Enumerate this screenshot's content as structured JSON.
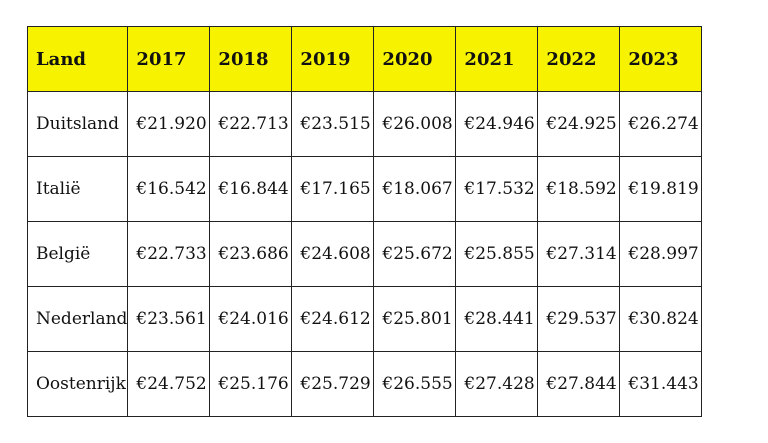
{
  "table": {
    "headers": [
      "Land",
      "2017",
      "2018",
      "2019",
      "2020",
      "2021",
      "2022",
      "2023"
    ],
    "rows": [
      {
        "country": "Duitsland",
        "values": [
          "€21.920",
          "€22.713",
          "€23.515",
          "€26.008",
          "€24.946",
          "€24.925",
          "€26.274"
        ]
      },
      {
        "country": "Italië",
        "values": [
          "€16.542",
          "€16.844",
          "€17.165",
          "€18.067",
          "€17.532",
          "€18.592",
          "€19.819"
        ]
      },
      {
        "country": "België",
        "values": [
          "€22.733",
          "€23.686",
          "€24.608",
          "€25.672",
          "€25.855",
          "€27.314",
          "€28.997"
        ]
      },
      {
        "country": "Nederland",
        "values": [
          "€23.561",
          "€24.016",
          "€24.612",
          "€25.801",
          "€28.441",
          "€29.537",
          "€30.824"
        ]
      },
      {
        "country": "Oostenrijk",
        "values": [
          "€24.752",
          "€25.176",
          "€25.729",
          "€26.555",
          "€27.428",
          "€27.844",
          "€31.443"
        ]
      }
    ]
  },
  "colors": {
    "header_background": "#f7f300",
    "border": "#222222",
    "text": "#111111"
  }
}
